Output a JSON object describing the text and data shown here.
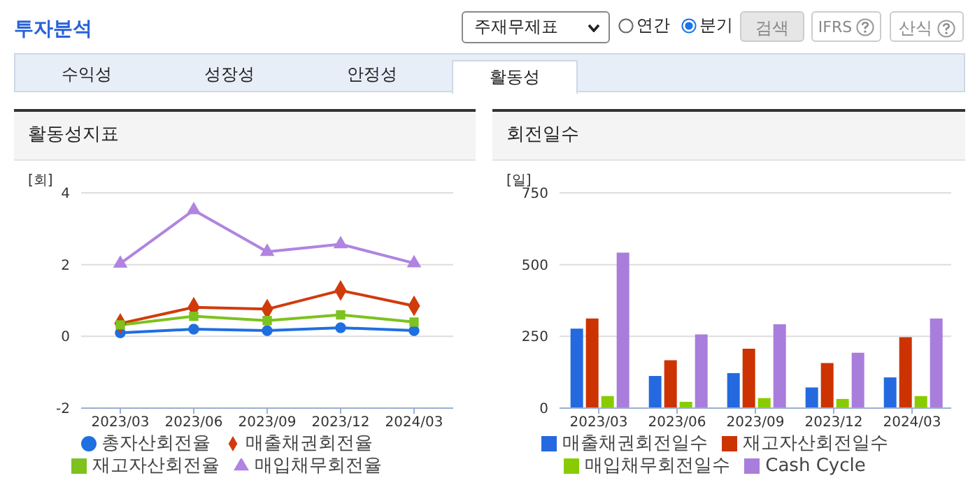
{
  "chart_data": [
    {
      "type": "line",
      "title": "활동성지표",
      "ylabel": "[회]",
      "categories": [
        "2023/03",
        "2023/06",
        "2023/09",
        "2023/12",
        "2024/03"
      ],
      "ylim": [
        -2,
        4
      ],
      "yticks": [
        -2,
        0,
        2,
        4
      ],
      "grid": "y",
      "legend": "bottom",
      "annotations": [
        "투자분석",
        "주재무제표",
        "연간",
        "분기",
        "검색",
        "IFRS",
        "산식",
        "수익성",
        "성장성",
        "안정성",
        "활동성"
      ],
      "series": [
        {
          "name": "총자산회전율",
          "color": "#1f6fe0",
          "marker": "circle",
          "values": [
            0.1,
            0.2,
            0.16,
            0.24,
            0.16
          ]
        },
        {
          "name": "매출채권회전율",
          "color": "#d13b0c",
          "marker": "diamond",
          "values": [
            0.36,
            0.81,
            0.76,
            1.28,
            0.85
          ]
        },
        {
          "name": "재고자산회전율",
          "color": "#7dc21e",
          "marker": "square",
          "values": [
            0.32,
            0.56,
            0.44,
            0.6,
            0.4
          ]
        },
        {
          "name": "매입채무회전율",
          "color": "#b084e0",
          "marker": "triangle",
          "values": [
            2.03,
            3.52,
            2.36,
            2.57,
            2.04
          ]
        }
      ]
    },
    {
      "type": "bar",
      "title": "회전일수",
      "ylabel": "[일]",
      "categories": [
        "2023/03",
        "2023/06",
        "2023/09",
        "2023/12",
        "2024/03"
      ],
      "ylim": [
        0,
        750
      ],
      "yticks": [
        0,
        250,
        500,
        750
      ],
      "grid": "y",
      "legend": "bottom",
      "series": [
        {
          "name": "매출채권회전일수",
          "color": "#2469e0",
          "values": [
            277,
            112,
            122,
            72,
            107
          ]
        },
        {
          "name": "재고자산회전일수",
          "color": "#cc3300",
          "values": [
            312,
            167,
            207,
            157,
            247
          ]
        },
        {
          "name": "매입채무회전일수",
          "color": "#88cc00",
          "values": [
            42,
            22,
            35,
            32,
            42
          ]
        },
        {
          "name": "Cash Cycle",
          "color": "#a97ddb",
          "values": [
            542,
            257,
            292,
            193,
            312
          ]
        }
      ]
    }
  ]
}
